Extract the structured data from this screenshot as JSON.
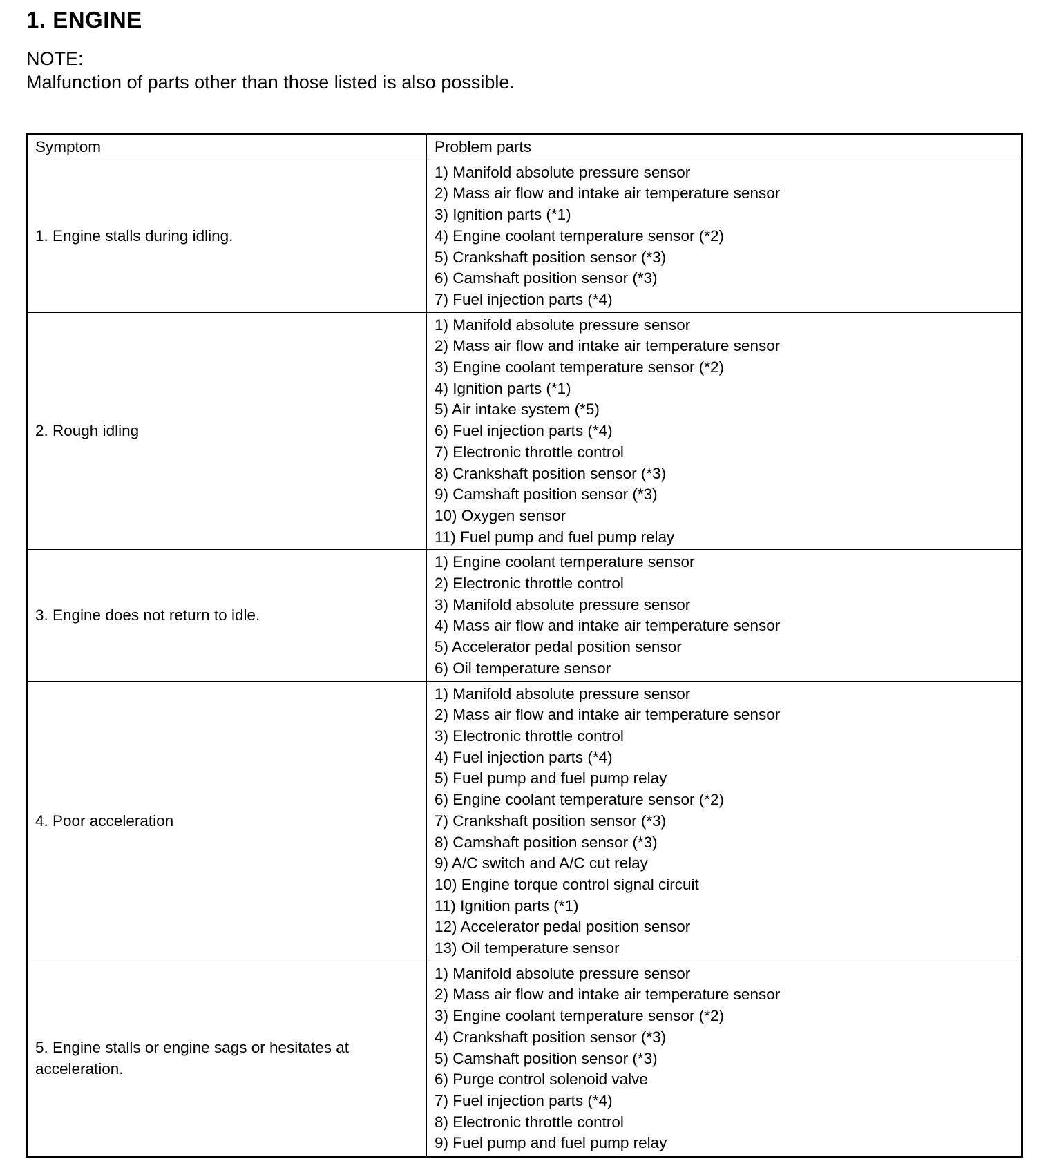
{
  "title": "1. ENGINE",
  "note": {
    "label": "NOTE:",
    "text": "Malfunction of parts other than those listed is also possible."
  },
  "table": {
    "headers": [
      "Symptom",
      "Problem parts"
    ],
    "rows": [
      {
        "symptom": "1. Engine stalls during idling.",
        "parts": [
          "1) Manifold absolute pressure sensor",
          "2) Mass air flow and intake air temperature sensor",
          "3) Ignition parts (*1)",
          "4) Engine coolant temperature sensor (*2)",
          "5) Crankshaft position sensor (*3)",
          "6) Camshaft position sensor (*3)",
          "7) Fuel injection parts (*4)"
        ]
      },
      {
        "symptom": "2. Rough idling",
        "parts": [
          "1) Manifold absolute pressure sensor",
          "2) Mass air flow and intake air temperature sensor",
          "3) Engine coolant temperature sensor (*2)",
          "4) Ignition parts (*1)",
          "5) Air intake system (*5)",
          "6) Fuel injection parts (*4)",
          "7) Electronic throttle control",
          "8) Crankshaft position sensor (*3)",
          "9) Camshaft position sensor (*3)",
          "10) Oxygen sensor",
          "11) Fuel pump and fuel pump relay"
        ]
      },
      {
        "symptom": "3. Engine does not return to idle.",
        "parts": [
          "1) Engine coolant temperature sensor",
          "2) Electronic throttle control",
          "3) Manifold absolute pressure sensor",
          "4) Mass air flow and intake air temperature sensor",
          "5) Accelerator pedal position sensor",
          "6) Oil temperature sensor"
        ]
      },
      {
        "symptom": "4. Poor acceleration",
        "parts": [
          "1) Manifold absolute pressure sensor",
          "2) Mass air flow and intake air temperature sensor",
          "3) Electronic throttle control",
          "4) Fuel injection parts (*4)",
          "5) Fuel pump and fuel pump relay",
          "6) Engine coolant temperature sensor (*2)",
          "7) Crankshaft position sensor (*3)",
          "8) Camshaft position sensor (*3)",
          "9) A/C switch and A/C cut relay",
          "10) Engine torque control signal circuit",
          "11) Ignition parts (*1)",
          "12) Accelerator pedal position sensor",
          "13) Oil temperature sensor"
        ]
      },
      {
        "symptom": "5. Engine stalls or engine sags or hesitates at acceleration.",
        "parts": [
          "1) Manifold absolute pressure sensor",
          "2) Mass air flow and intake air temperature sensor",
          "3) Engine coolant temperature sensor (*2)",
          "4) Crankshaft position sensor (*3)",
          "5) Camshaft position sensor (*3)",
          "6) Purge control solenoid valve",
          "7) Fuel injection parts (*4)",
          "8) Electronic throttle control",
          "9) Fuel pump and fuel pump relay"
        ]
      }
    ]
  }
}
